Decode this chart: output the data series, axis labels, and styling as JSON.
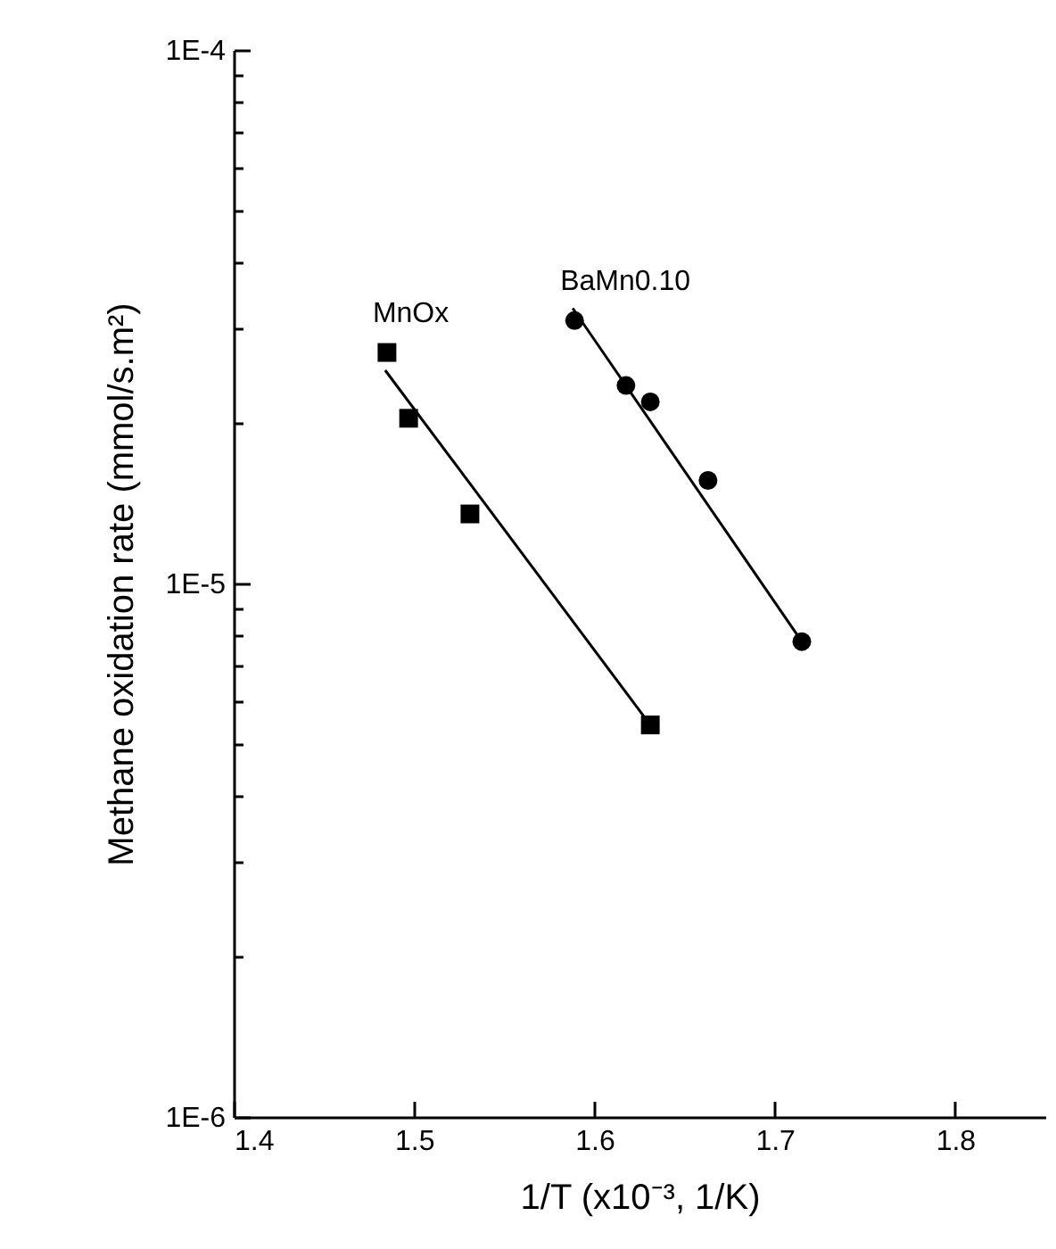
{
  "chart_data": {
    "type": "scatter",
    "xlabel": "1/T (x10⁻³, 1/K)",
    "ylabel": "Methane oxidation rate (mmol/s.m²)",
    "log": "y",
    "xlim": [
      1.4,
      1.85
    ],
    "xticks": [
      1.4,
      1.5,
      1.6,
      1.7,
      1.8
    ],
    "ylim": [
      1e-06,
      0.0001
    ],
    "yticks": [
      {
        "value": 1e-06,
        "label": "1E-6"
      },
      {
        "value": 2e-06,
        "label": null
      },
      {
        "value": 3e-06,
        "label": null
      },
      {
        "value": 4e-06,
        "label": null
      },
      {
        "value": 5e-06,
        "label": null
      },
      {
        "value": 6e-06,
        "label": null
      },
      {
        "value": 7e-06,
        "label": null
      },
      {
        "value": 8e-06,
        "label": null
      },
      {
        "value": 9e-06,
        "label": null
      },
      {
        "value": 1e-05,
        "label": "1E-5"
      },
      {
        "value": 2e-05,
        "label": null
      },
      {
        "value": 3e-05,
        "label": null
      },
      {
        "value": 4e-05,
        "label": null
      },
      {
        "value": 5e-05,
        "label": null
      },
      {
        "value": 6e-05,
        "label": null
      },
      {
        "value": 7e-05,
        "label": null
      },
      {
        "value": 8e-05,
        "label": null
      },
      {
        "value": 9e-05,
        "label": null
      },
      {
        "value": 0.0001,
        "label": "1E-4"
      }
    ],
    "series": [
      {
        "name": "MnOx",
        "marker": "square",
        "color": "#000000",
        "x": [
          1.485,
          1.497,
          1.531,
          1.631
        ],
        "values": [
          2.71e-05,
          2.04e-05,
          1.35e-05,
          5.43e-06
        ]
      },
      {
        "name": "BaMn0.10",
        "marker": "circle",
        "color": "#000000",
        "x": [
          1.589,
          1.6175,
          1.631,
          1.663,
          1.715
        ],
        "values": [
          3.11e-05,
          2.35e-05,
          2.19e-05,
          1.56e-05,
          7.78e-06
        ]
      },
      {
        "type": "line",
        "marker": "none",
        "color": "#000000",
        "x": [
          1.484,
          1.631
        ],
        "values": [
          2.51e-05,
          5.43e-06
        ]
      },
      {
        "type": "line",
        "marker": "none",
        "color": "#000000",
        "x": [
          1.588,
          1.715
        ],
        "values": [
          3.28e-05,
          7.78e-06
        ]
      }
    ]
  }
}
